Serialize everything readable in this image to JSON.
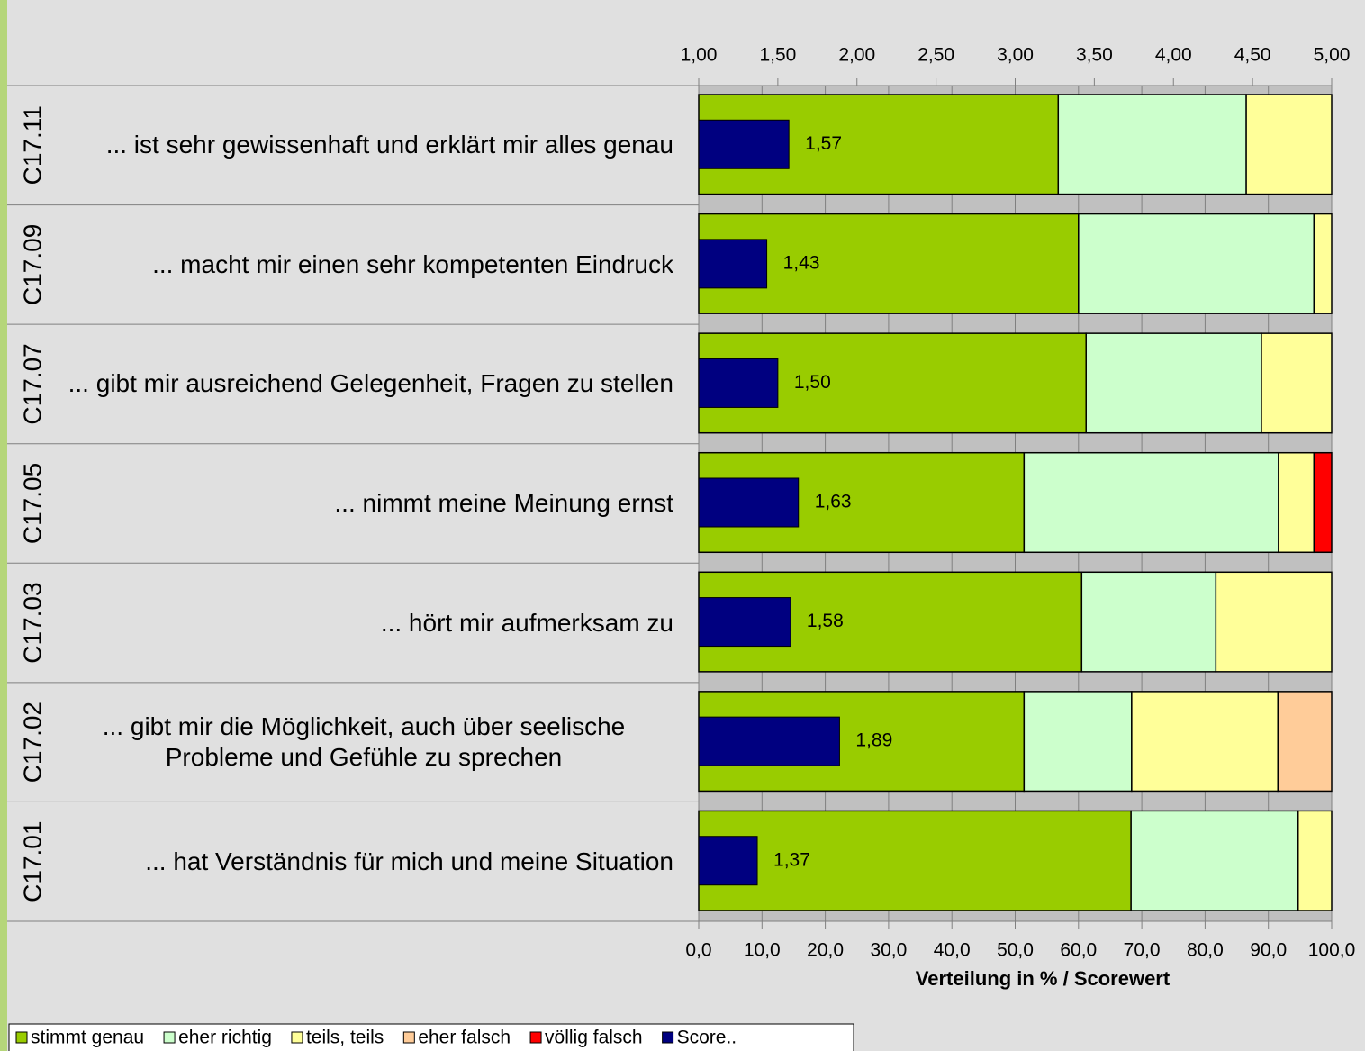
{
  "chart_data": {
    "type": "stacked-bar-horizontal",
    "categories": [
      "C17.11",
      "C17.09",
      "C17.07",
      "C17.05",
      "C17.03",
      "C17.02",
      "C17.01"
    ],
    "category_labels": [
      "... ist sehr gewissenhaft und erklärt mir alles genau",
      "... macht mir einen sehr kompetenten Eindruck",
      "... gibt mir ausreichend Gelegenheit, Fragen zu stellen",
      "... nimmt meine Meinung ernst",
      "... hört mir aufmerksam zu",
      "... gibt mir die Möglichkeit, auch über seelische Probleme und Gefühle zu sprechen",
      "... hat Verständnis für mich und meine Situation"
    ],
    "series": [
      {
        "name": "stimmt genau",
        "color": "#99cc00",
        "values": [
          56.8,
          60.0,
          61.2,
          51.4,
          60.5,
          51.4,
          68.3
        ]
      },
      {
        "name": "eher richtig",
        "color": "#ccffcc",
        "values": [
          29.7,
          37.2,
          27.7,
          40.2,
          21.2,
          17.0,
          26.4
        ]
      },
      {
        "name": "teils, teils",
        "color": "#ffff99",
        "values": [
          13.5,
          2.8,
          11.1,
          5.6,
          18.3,
          23.1,
          5.3
        ]
      },
      {
        "name": "eher falsch",
        "color": "#ffcc99",
        "values": [
          0,
          0,
          0,
          0,
          0,
          8.5,
          0
        ]
      },
      {
        "name": "völlig falsch",
        "color": "#ff0000",
        "values": [
          0,
          0,
          0,
          2.8,
          0,
          0,
          0
        ]
      }
    ],
    "score": {
      "name": "Score..",
      "color": "#000080",
      "values": [
        1.57,
        1.43,
        1.5,
        1.63,
        1.58,
        1.89,
        1.37
      ],
      "value_labels": [
        "1,57",
        "1,43",
        "1,50",
        "1,63",
        "1,58",
        "1,89",
        "1,37"
      ]
    },
    "xlim": [
      0,
      100
    ],
    "xticks": [
      {
        "value": 0,
        "label": "0,0"
      },
      {
        "value": 10,
        "label": "10,0"
      },
      {
        "value": 20,
        "label": "20,0"
      },
      {
        "value": 30,
        "label": "30,0"
      },
      {
        "value": 40,
        "label": "40,0"
      },
      {
        "value": 50,
        "label": "50,0"
      },
      {
        "value": 60,
        "label": "60,0"
      },
      {
        "value": 70,
        "label": "70,0"
      },
      {
        "value": 80,
        "label": "80,0"
      },
      {
        "value": 90,
        "label": "90,0"
      },
      {
        "value": 100,
        "label": "100,0"
      }
    ],
    "x2lim": [
      1,
      5
    ],
    "x2ticks": [
      {
        "value": 1,
        "label": "1,00"
      },
      {
        "value": 1.5,
        "label": "1,50"
      },
      {
        "value": 2,
        "label": "2,00"
      },
      {
        "value": 2.5,
        "label": "2,50"
      },
      {
        "value": 3,
        "label": "3,00"
      },
      {
        "value": 3.5,
        "label": "3,50"
      },
      {
        "value": 4,
        "label": "4,00"
      },
      {
        "value": 4.5,
        "label": "4,50"
      },
      {
        "value": 5,
        "label": "5,00"
      }
    ],
    "x_label": "Verteilung in % / Scorewert",
    "grid": true
  }
}
